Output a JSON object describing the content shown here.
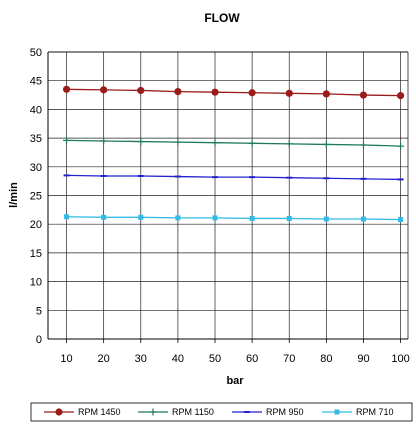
{
  "chart_data": {
    "type": "line",
    "title": "FLOW",
    "xlabel": "bar",
    "ylabel": "l/min",
    "x": [
      10,
      20,
      30,
      40,
      50,
      60,
      70,
      80,
      90,
      100
    ],
    "xlim": [
      5,
      102
    ],
    "ylim": [
      0,
      50
    ],
    "yticks": [
      0,
      5,
      10,
      15,
      20,
      25,
      30,
      35,
      40,
      45,
      50
    ],
    "grid": true,
    "legend_position": "bottom",
    "series": [
      {
        "name": "RPM 1450",
        "color": "#9b1b1b",
        "marker": "circle",
        "values": [
          43.5,
          43.4,
          43.3,
          43.1,
          43.0,
          42.9,
          42.8,
          42.7,
          42.5,
          42.4
        ]
      },
      {
        "name": "RPM 1150",
        "color": "#1f7a5c",
        "marker": "plus",
        "values": [
          34.6,
          34.5,
          34.4,
          34.3,
          34.2,
          34.1,
          34.0,
          33.9,
          33.8,
          33.6
        ]
      },
      {
        "name": "RPM 950",
        "color": "#2222cc",
        "marker": "dash",
        "values": [
          28.5,
          28.4,
          28.4,
          28.3,
          28.2,
          28.2,
          28.1,
          28.0,
          27.9,
          27.8
        ]
      },
      {
        "name": "RPM 710",
        "color": "#33bbe6",
        "marker": "square",
        "values": [
          21.3,
          21.2,
          21.2,
          21.1,
          21.1,
          21.0,
          21.0,
          20.9,
          20.9,
          20.8
        ]
      }
    ]
  }
}
